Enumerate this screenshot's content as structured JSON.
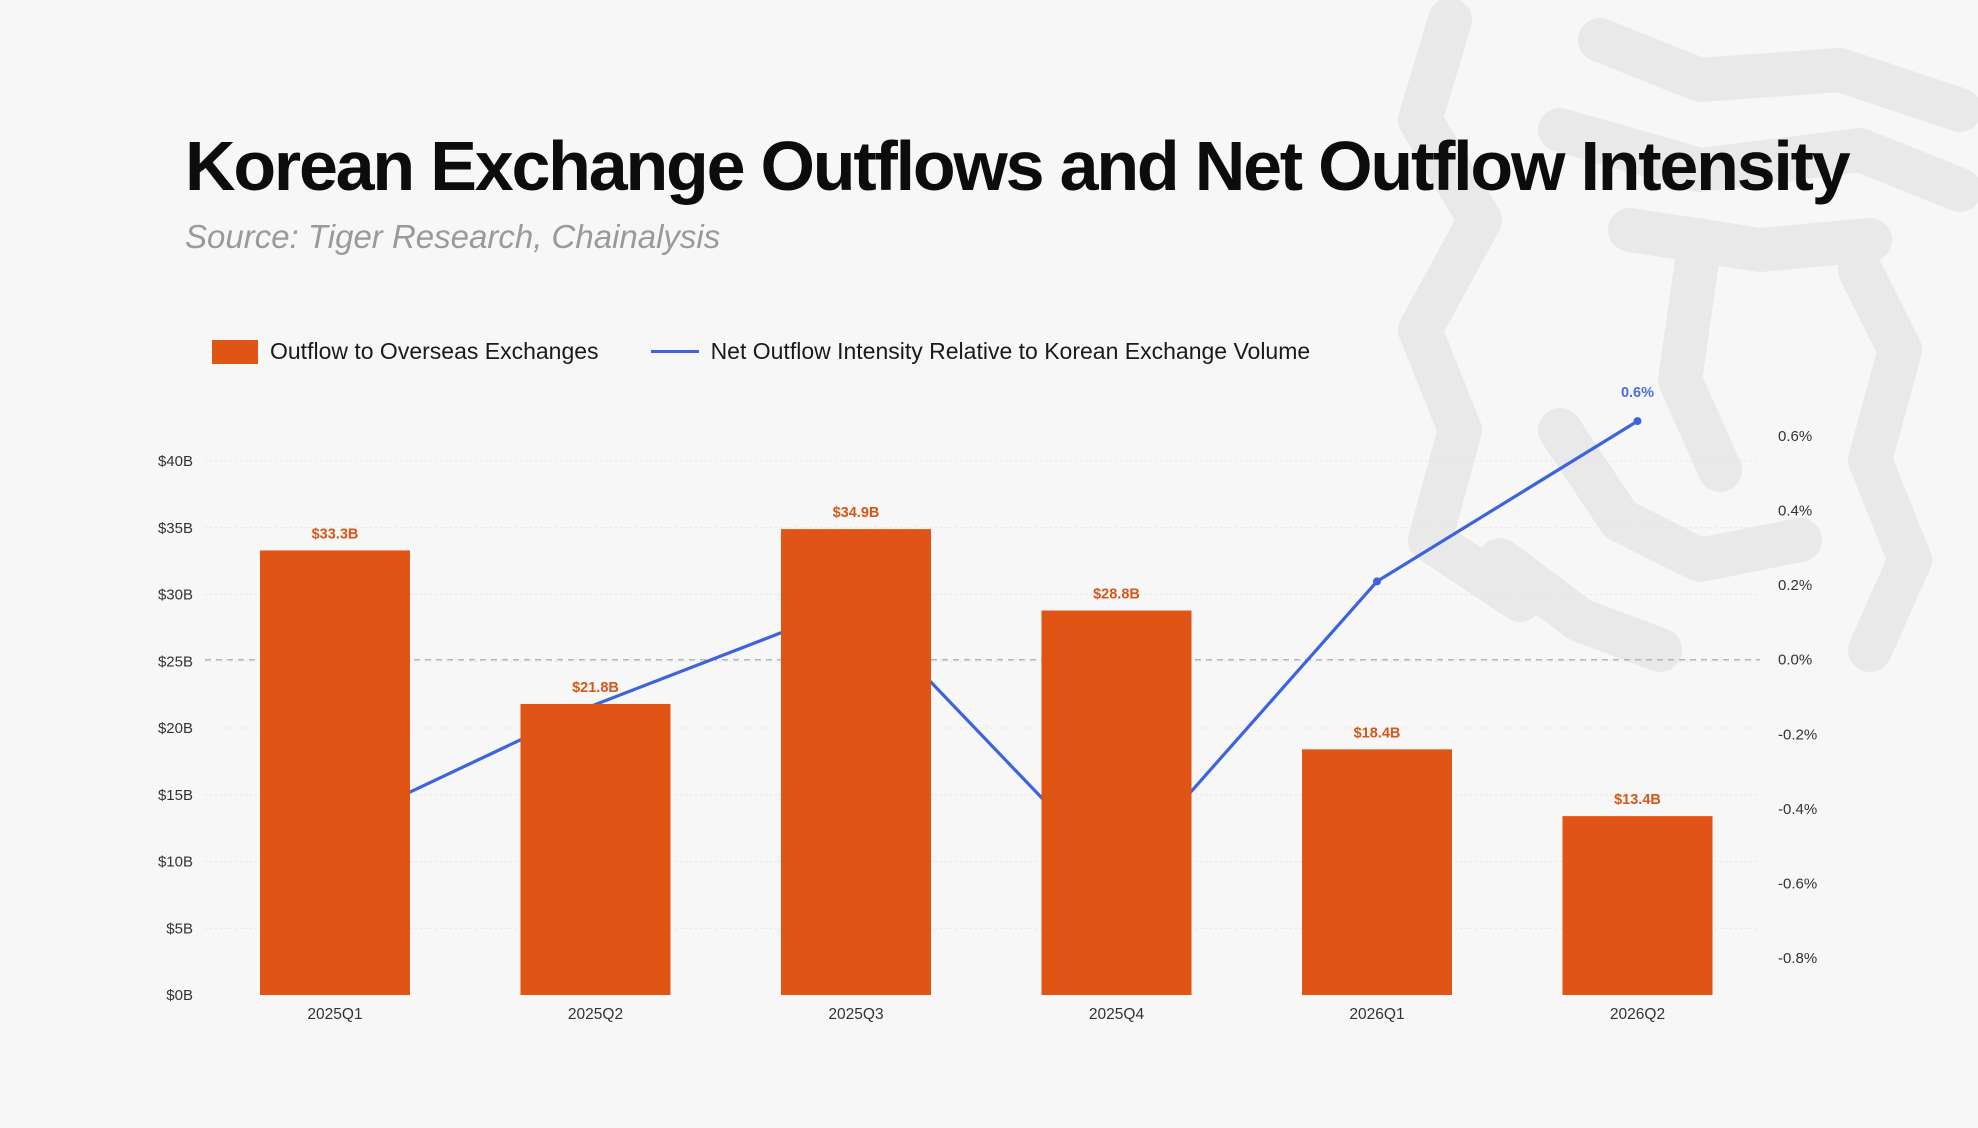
{
  "page": {
    "title": "Korean Exchange Outflows and Net Outflow Intensity",
    "subtitle": "Source: Tiger Research, Chainalysis"
  },
  "colors": {
    "bar": "#e05515",
    "line": "#3d63dd",
    "bar_label": "#d4571c",
    "line_label": "#4a6fd8",
    "axis_text": "#333333",
    "grid": "#e4e4e4",
    "zero_line": "#b5b5b5",
    "watermark": "#e9e9e9"
  },
  "chart_data": {
    "type": "bar",
    "title": "Korean Exchange Outflows and Net Outflow Intensity",
    "subtitle": "Source: Tiger Research, Chainalysis",
    "categories": [
      "2025Q1",
      "2025Q2",
      "2025Q3",
      "2025Q4",
      "2026Q1",
      "2026Q2"
    ],
    "series": [
      {
        "name": "Outflow to Overseas Exchanges",
        "type": "bar",
        "axis": "left",
        "values": [
          33.3,
          21.8,
          34.9,
          28.8,
          18.4,
          13.4
        ],
        "labels": [
          "$33.3B",
          "$21.8B",
          "$34.9B",
          "$28.8B",
          "$18.4B",
          "$13.4B"
        ],
        "color": "#e05515"
      },
      {
        "name": "Net Outflow Intensity Relative to Korean Exchange Volume",
        "type": "line",
        "axis": "right",
        "values": [
          -0.45,
          -0.12,
          0.15,
          -0.58,
          0.21,
          0.64
        ],
        "labels": [
          "",
          "",
          "",
          "",
          "",
          "0.6%"
        ],
        "color": "#3d63dd"
      }
    ],
    "y_left": {
      "range": [
        0,
        40
      ],
      "ticks": [
        0,
        5,
        10,
        15,
        20,
        25,
        30,
        35,
        40
      ],
      "tick_labels": [
        "$0B",
        "$5B",
        "$10B",
        "$15B",
        "$20B",
        "$25B",
        "$30B",
        "$35B",
        "$40B"
      ]
    },
    "y_right": {
      "range": [
        -0.8,
        0.6
      ],
      "ticks": [
        -0.8,
        -0.6,
        -0.4,
        -0.2,
        0.0,
        0.2,
        0.4,
        0.6
      ],
      "tick_labels": [
        "-0.8%",
        "-0.6%",
        "-0.4%",
        "-0.2%",
        "0.0%",
        "0.2%",
        "0.4%",
        "0.6%"
      ]
    },
    "xlabel": "",
    "ylabel": "",
    "grid": true,
    "legend_position": "top-left"
  }
}
